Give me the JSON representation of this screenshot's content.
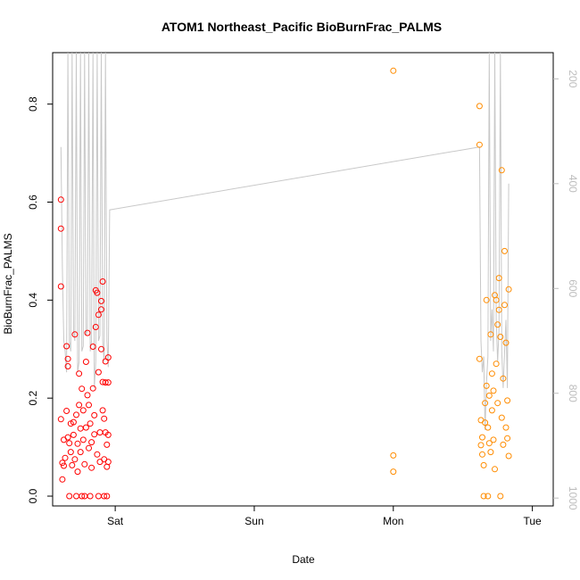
{
  "chart_data": {
    "type": "scatter",
    "title": "ATOM1 Northeast_Pacific BioBurnFrac_PALMS",
    "xlabel": "Date",
    "ylabel": "BioBurnFrac_PALMS",
    "x_axis": {
      "kind": "days",
      "ticks": [
        {
          "value": 1.0,
          "label": "Sat"
        },
        {
          "value": 2.0,
          "label": "Sun"
        },
        {
          "value": 3.0,
          "label": "Mon"
        },
        {
          "value": 4.0,
          "label": "Tue"
        }
      ],
      "xlim": [
        0.55,
        4.15
      ]
    },
    "y_axis": {
      "ticks": [
        0.0,
        0.2,
        0.4,
        0.6,
        0.8
      ],
      "tick_labels": [
        "0.0",
        "0.2",
        "0.4",
        "0.6",
        "0.8"
      ],
      "ylim": [
        -0.02,
        0.905
      ]
    },
    "y2_axis": {
      "ticks": [
        200,
        400,
        600,
        800,
        1000
      ],
      "tick_labels": [
        "200",
        "400",
        "600",
        "800",
        "1000"
      ],
      "ylim": [
        1015,
        150
      ],
      "color": "#bdbdbd"
    },
    "colors": {
      "series1": "#ff0000",
      "series2": "#ff8c00",
      "pressure_line": "#c8c8c8",
      "frame": "#000000"
    },
    "series": [
      {
        "marker": "open-circle",
        "color": "#ff0000",
        "points": [
          [
            0.61,
            0.605
          ],
          [
            0.61,
            0.546
          ],
          [
            0.61,
            0.428
          ],
          [
            0.61,
            0.157
          ],
          [
            0.62,
            0.068
          ],
          [
            0.62,
            0.034
          ],
          [
            0.63,
            0.062
          ],
          [
            0.63,
            0.115
          ],
          [
            0.64,
            0.078
          ],
          [
            0.65,
            0.174
          ],
          [
            0.65,
            0.306
          ],
          [
            0.66,
            0.28
          ],
          [
            0.66,
            0.265
          ],
          [
            0.66,
            0.12
          ],
          [
            0.67,
            0.108
          ],
          [
            0.67,
            0.0
          ],
          [
            0.68,
            0.148
          ],
          [
            0.68,
            0.09
          ],
          [
            0.69,
            0.063
          ],
          [
            0.7,
            0.151
          ],
          [
            0.7,
            0.125
          ],
          [
            0.71,
            0.33
          ],
          [
            0.71,
            0.075
          ],
          [
            0.72,
            0.166
          ],
          [
            0.72,
            0.0
          ],
          [
            0.73,
            0.107
          ],
          [
            0.73,
            0.05
          ],
          [
            0.74,
            0.25
          ],
          [
            0.74,
            0.186
          ],
          [
            0.75,
            0.138
          ],
          [
            0.75,
            0.09
          ],
          [
            0.76,
            0.0
          ],
          [
            0.76,
            0.219
          ],
          [
            0.77,
            0.175
          ],
          [
            0.77,
            0.115
          ],
          [
            0.78,
            0.065
          ],
          [
            0.78,
            0.0
          ],
          [
            0.79,
            0.274
          ],
          [
            0.79,
            0.14
          ],
          [
            0.8,
            0.333
          ],
          [
            0.8,
            0.206
          ],
          [
            0.81,
            0.186
          ],
          [
            0.81,
            0.098
          ],
          [
            0.82,
            0.0
          ],
          [
            0.82,
            0.148
          ],
          [
            0.83,
            0.11
          ],
          [
            0.83,
            0.058
          ],
          [
            0.84,
            0.305
          ],
          [
            0.84,
            0.22
          ],
          [
            0.85,
            0.165
          ],
          [
            0.85,
            0.126
          ],
          [
            0.86,
            0.42
          ],
          [
            0.86,
            0.345
          ],
          [
            0.87,
            0.415
          ],
          [
            0.87,
            0.085
          ],
          [
            0.88,
            0.0
          ],
          [
            0.88,
            0.37
          ],
          [
            0.88,
            0.253
          ],
          [
            0.89,
            0.13
          ],
          [
            0.89,
            0.07
          ],
          [
            0.9,
            0.398
          ],
          [
            0.9,
            0.381
          ],
          [
            0.9,
            0.3
          ],
          [
            0.91,
            0.438
          ],
          [
            0.91,
            0.233
          ],
          [
            0.91,
            0.175
          ],
          [
            0.92,
            0.0
          ],
          [
            0.92,
            0.158
          ],
          [
            0.92,
            0.075
          ],
          [
            0.93,
            0.275
          ],
          [
            0.93,
            0.232
          ],
          [
            0.93,
            0.13
          ],
          [
            0.94,
            0.0
          ],
          [
            0.94,
            0.105
          ],
          [
            0.94,
            0.06
          ],
          [
            0.95,
            0.283
          ],
          [
            0.95,
            0.232
          ],
          [
            0.95,
            0.125
          ],
          [
            0.95,
            0.07
          ]
        ]
      },
      {
        "marker": "open-circle",
        "color": "#ff8c00",
        "points": [
          [
            3.0,
            0.868
          ],
          [
            3.0,
            0.083
          ],
          [
            3.0,
            0.05
          ],
          [
            3.62,
            0.796
          ],
          [
            3.62,
            0.717
          ],
          [
            3.62,
            0.28
          ],
          [
            3.63,
            0.155
          ],
          [
            3.63,
            0.104
          ],
          [
            3.64,
            0.085
          ],
          [
            3.64,
            0.12
          ],
          [
            3.65,
            0.0
          ],
          [
            3.65,
            0.063
          ],
          [
            3.66,
            0.19
          ],
          [
            3.66,
            0.15
          ],
          [
            3.67,
            0.225
          ],
          [
            3.67,
            0.4
          ],
          [
            3.68,
            0.0
          ],
          [
            3.68,
            0.14
          ],
          [
            3.69,
            0.205
          ],
          [
            3.69,
            0.108
          ],
          [
            3.7,
            0.33
          ],
          [
            3.7,
            0.09
          ],
          [
            3.71,
            0.25
          ],
          [
            3.71,
            0.175
          ],
          [
            3.72,
            0.215
          ],
          [
            3.72,
            0.115
          ],
          [
            3.73,
            0.41
          ],
          [
            3.73,
            0.055
          ],
          [
            3.74,
            0.4
          ],
          [
            3.74,
            0.27
          ],
          [
            3.75,
            0.35
          ],
          [
            3.75,
            0.19
          ],
          [
            3.76,
            0.445
          ],
          [
            3.76,
            0.38
          ],
          [
            3.77,
            0.325
          ],
          [
            3.77,
            0.0
          ],
          [
            3.78,
            0.665
          ],
          [
            3.78,
            0.16
          ],
          [
            3.79,
            0.24
          ],
          [
            3.79,
            0.105
          ],
          [
            3.8,
            0.5
          ],
          [
            3.8,
            0.39
          ],
          [
            3.81,
            0.313
          ],
          [
            3.81,
            0.14
          ],
          [
            3.82,
            0.195
          ],
          [
            3.82,
            0.118
          ],
          [
            3.83,
            0.422
          ],
          [
            3.83,
            0.082
          ]
        ]
      },
      {
        "name": "",
        "marker": "line",
        "color": "#c8c8c8",
        "axis": "right",
        "points": [
          [
            0.61,
            330
          ],
          [
            0.62,
            560
          ],
          [
            0.63,
            700
          ],
          [
            0.64,
            720
          ],
          [
            0.65,
            760
          ],
          [
            0.66,
            150
          ],
          [
            0.67,
            700
          ],
          [
            0.68,
            720
          ],
          [
            0.69,
            150
          ],
          [
            0.7,
            680
          ],
          [
            0.71,
            700
          ],
          [
            0.72,
            150
          ],
          [
            0.73,
            760
          ],
          [
            0.74,
            740
          ],
          [
            0.75,
            150
          ],
          [
            0.76,
            720
          ],
          [
            0.77,
            710
          ],
          [
            0.78,
            150
          ],
          [
            0.79,
            690
          ],
          [
            0.8,
            680
          ],
          [
            0.81,
            150
          ],
          [
            0.82,
            720
          ],
          [
            0.83,
            700
          ],
          [
            0.84,
            150
          ],
          [
            0.85,
            790
          ],
          [
            0.86,
            740
          ],
          [
            0.87,
            150
          ],
          [
            0.88,
            700
          ],
          [
            0.89,
            690
          ],
          [
            0.9,
            150
          ],
          [
            0.91,
            700
          ],
          [
            0.92,
            740
          ],
          [
            0.93,
            150
          ],
          [
            0.94,
            700
          ],
          [
            0.95,
            750
          ],
          [
            0.96,
            450
          ],
          [
            3.62,
            330
          ],
          [
            3.63,
            700
          ],
          [
            3.64,
            760
          ],
          [
            3.65,
            730
          ],
          [
            3.66,
            870
          ],
          [
            3.67,
            780
          ],
          [
            3.68,
            730
          ],
          [
            3.69,
            150
          ],
          [
            3.7,
            700
          ],
          [
            3.71,
            640
          ],
          [
            3.72,
            720
          ],
          [
            3.73,
            150
          ],
          [
            3.74,
            660
          ],
          [
            3.75,
            740
          ],
          [
            3.76,
            680
          ],
          [
            3.77,
            150
          ],
          [
            3.78,
            720
          ],
          [
            3.79,
            790
          ],
          [
            3.8,
            720
          ],
          [
            3.81,
            660
          ],
          [
            3.82,
            790
          ],
          [
            3.83,
            400
          ]
        ]
      }
    ],
    "grid": false,
    "legend": "none"
  }
}
